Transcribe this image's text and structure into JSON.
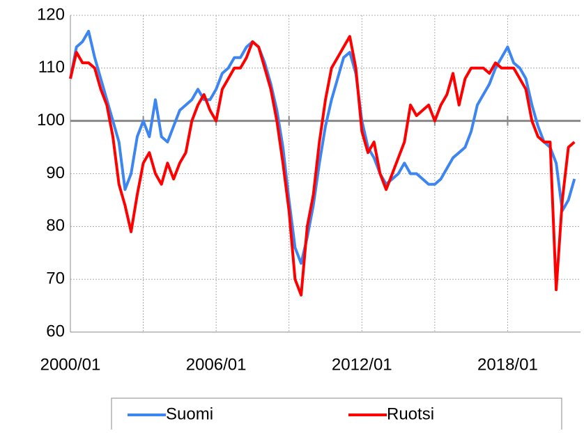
{
  "chart_data": {
    "type": "line",
    "x": [
      "2000/01",
      "2000/04",
      "2000/07",
      "2000/10",
      "2001/01",
      "2001/04",
      "2001/07",
      "2001/10",
      "2002/01",
      "2002/04",
      "2002/07",
      "2002/10",
      "2003/01",
      "2003/04",
      "2003/07",
      "2003/10",
      "2004/01",
      "2004/04",
      "2004/07",
      "2004/10",
      "2005/01",
      "2005/04",
      "2005/07",
      "2005/10",
      "2006/01",
      "2006/04",
      "2006/07",
      "2006/10",
      "2007/01",
      "2007/04",
      "2007/07",
      "2007/10",
      "2008/01",
      "2008/04",
      "2008/07",
      "2008/10",
      "2009/01",
      "2009/04",
      "2009/07",
      "2009/10",
      "2010/01",
      "2010/04",
      "2010/07",
      "2010/10",
      "2011/01",
      "2011/04",
      "2011/07",
      "2011/10",
      "2012/01",
      "2012/04",
      "2012/07",
      "2012/10",
      "2013/01",
      "2013/04",
      "2013/07",
      "2013/10",
      "2014/01",
      "2014/04",
      "2014/07",
      "2014/10",
      "2015/01",
      "2015/04",
      "2015/07",
      "2015/10",
      "2016/01",
      "2016/04",
      "2016/07",
      "2016/10",
      "2017/01",
      "2017/04",
      "2017/07",
      "2017/10",
      "2018/01",
      "2018/04",
      "2018/07",
      "2018/10",
      "2019/01",
      "2019/04",
      "2019/07",
      "2019/10",
      "2020/01",
      "2020/04",
      "2020/07",
      "2020/10"
    ],
    "series": [
      {
        "name": "Suomi",
        "color": "#3d85f0",
        "values": [
          108,
          114,
          115,
          117,
          112,
          108,
          104,
          100,
          96,
          87,
          90,
          97,
          100,
          97,
          104,
          97,
          96,
          99,
          102,
          103,
          104,
          106,
          104,
          104,
          106,
          109,
          110,
          112,
          112,
          114,
          115,
          114,
          111,
          107,
          102,
          95,
          85,
          76,
          73,
          78,
          84,
          92,
          99,
          104,
          108,
          112,
          113,
          109,
          100,
          95,
          93,
          90,
          88,
          89,
          90,
          92,
          90,
          90,
          89,
          88,
          88,
          89,
          91,
          93,
          94,
          95,
          98,
          103,
          105,
          107,
          110,
          112,
          114,
          111,
          110,
          108,
          103,
          99,
          96,
          95,
          92,
          83,
          85,
          89
        ]
      },
      {
        "name": "Ruotsi",
        "color": "#ff0000",
        "values": [
          108,
          113,
          111,
          111,
          110,
          106,
          103,
          97,
          88,
          84,
          79,
          86,
          92,
          94,
          90,
          88,
          92,
          89,
          92,
          94,
          100,
          103,
          105,
          102,
          100,
          106,
          108,
          110,
          110,
          112,
          115,
          114,
          110,
          106,
          100,
          92,
          83,
          70,
          67,
          80,
          86,
          96,
          104,
          110,
          112,
          114,
          116,
          110,
          98,
          94,
          96,
          90,
          87,
          90,
          93,
          96,
          103,
          101,
          102,
          103,
          100,
          103,
          105,
          109,
          103,
          108,
          110,
          110,
          110,
          109,
          111,
          110,
          110,
          110,
          108,
          106,
          100,
          97,
          96,
          96,
          68,
          85,
          95,
          96
        ]
      }
    ],
    "xlim": [
      "2000/01",
      "2021/01"
    ],
    "xticks": [
      "2000/01",
      "2006/01",
      "2012/01",
      "2018/01"
    ],
    "xgrid": [
      "2003/01",
      "2006/01",
      "2009/01",
      "2012/01",
      "2015/01",
      "2018/01"
    ],
    "ylim": [
      60,
      120
    ],
    "yticks": [
      60,
      70,
      80,
      90,
      100,
      110,
      120
    ],
    "reference_line": 100,
    "grid": true,
    "legend": "bottom"
  }
}
